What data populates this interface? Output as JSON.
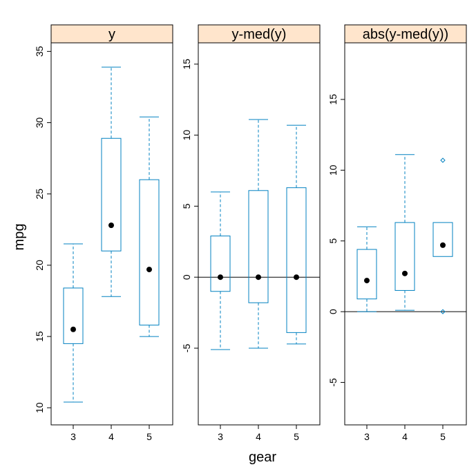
{
  "figure": {
    "ylabel": "mpg",
    "xlabel": "gear"
  },
  "chart_data": [
    {
      "type": "box",
      "title": "y",
      "categories": [
        "3",
        "4",
        "5"
      ],
      "ylim": [
        8.8,
        35.6
      ],
      "yticks": [
        10,
        15,
        20,
        25,
        30,
        35
      ],
      "reference_line": null,
      "boxes": [
        {
          "category": "3",
          "whisker_low": 10.4,
          "q1": 14.5,
          "median": 15.5,
          "q3": 18.4,
          "whisker_high": 21.5,
          "outliers": []
        },
        {
          "category": "4",
          "whisker_low": 17.8,
          "q1": 21.0,
          "median": 22.8,
          "q3": 28.9,
          "whisker_high": 33.9,
          "outliers": []
        },
        {
          "category": "5",
          "whisker_low": 15.0,
          "q1": 15.8,
          "median": 19.7,
          "q3": 26.0,
          "whisker_high": 30.4,
          "outliers": []
        }
      ]
    },
    {
      "type": "box",
      "title": "y-med(y)",
      "categories": [
        "3",
        "4",
        "5"
      ],
      "ylim": [
        -10.4,
        16.5
      ],
      "yticks": [
        -5,
        0,
        5,
        10,
        15
      ],
      "reference_line": 0,
      "boxes": [
        {
          "category": "3",
          "whisker_low": -5.1,
          "q1": -1.0,
          "median": 0,
          "q3": 2.9,
          "whisker_high": 6.0,
          "outliers": []
        },
        {
          "category": "4",
          "whisker_low": -5.0,
          "q1": -1.8,
          "median": 0,
          "q3": 6.1,
          "whisker_high": 11.1,
          "outliers": []
        },
        {
          "category": "5",
          "whisker_low": -4.7,
          "q1": -3.9,
          "median": 0,
          "q3": 6.3,
          "whisker_high": 10.7,
          "outliers": []
        }
      ]
    },
    {
      "type": "box",
      "title": "abs(y-med(y))",
      "categories": [
        "3",
        "4",
        "5"
      ],
      "ylim": [
        -8.0,
        19.0
      ],
      "yticks": [
        -5,
        0,
        5,
        10,
        15
      ],
      "reference_line": 0,
      "boxes": [
        {
          "category": "3",
          "whisker_low": 0.0,
          "q1": 0.9,
          "median": 2.2,
          "q3": 4.4,
          "whisker_high": 6.0,
          "outliers": []
        },
        {
          "category": "4",
          "whisker_low": 0.1,
          "q1": 1.5,
          "median": 2.7,
          "q3": 6.3,
          "whisker_high": 11.1,
          "outliers": []
        },
        {
          "category": "5",
          "whisker_low": 3.9,
          "q1": 3.9,
          "median": 4.7,
          "q3": 6.3,
          "whisker_high": 6.3,
          "outliers": [
            0.0,
            10.7
          ]
        }
      ]
    }
  ],
  "colors": {
    "box": "#0080c0",
    "strip_fill": "#ffe5cc",
    "median_dot": "#000000",
    "reference_line": "#000000"
  }
}
